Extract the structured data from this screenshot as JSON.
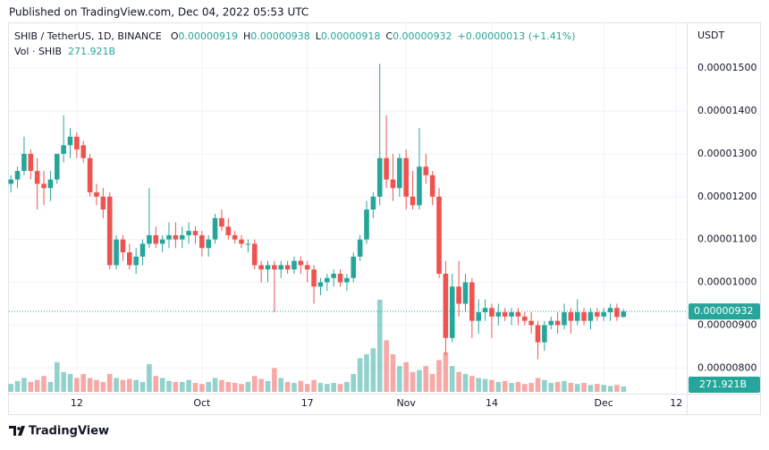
{
  "header": {
    "published": "Published on TradingView.com, Dec 04, 2022 05:53 UTC"
  },
  "footer": {
    "brand": "TradingView"
  },
  "chart_data": {
    "type": "candlestick",
    "title": "SHIB / TetherUS, 1D, BINANCE",
    "ohlc_legend": [
      {
        "label": "O",
        "value": "0.00000919"
      },
      {
        "label": "H",
        "value": "0.00000938"
      },
      {
        "label": "L",
        "value": "0.00000918"
      },
      {
        "label": "C",
        "value": "0.00000932"
      }
    ],
    "change": "+0.00000013 (+1.41%)",
    "volume_title": "Vol · SHIB",
    "volume_label": "271.921B",
    "currency": "USDT",
    "last_price_label": "0.00000932",
    "up_color": "#26a69a",
    "down_color": "#ef5350",
    "grid": true,
    "xlim": [
      -0.3,
      102.6
    ],
    "xticks": [
      {
        "value": 10,
        "label": "12"
      },
      {
        "value": 29,
        "label": "Oct"
      },
      {
        "value": 45,
        "label": "17"
      },
      {
        "value": 60,
        "label": "Nov"
      },
      {
        "value": 73,
        "label": "14"
      },
      {
        "value": 90,
        "label": "Dec"
      },
      {
        "value": 101,
        "label": "12"
      }
    ],
    "ylim": [
      7.4e-06,
      1.607e-05
    ],
    "yticks": [
      {
        "value": 1.5e-05,
        "label": "0.00001500"
      },
      {
        "value": 1.4e-05,
        "label": "0.00001400"
      },
      {
        "value": 1.3e-05,
        "label": "0.00001300"
      },
      {
        "value": 1.2e-05,
        "label": "0.00001200"
      },
      {
        "value": 1.1e-05,
        "label": "0.00001100"
      },
      {
        "value": 1e-05,
        "label": "0.00001000"
      },
      {
        "value": 9e-06,
        "label": "0.00000900"
      },
      {
        "value": 8e-06,
        "label": "0.00000800"
      }
    ],
    "open": [
      1.23e-05,
      1.24e-05,
      1.26e-05,
      1.3e-05,
      1.26e-05,
      1.23e-05,
      1.22e-05,
      1.24e-05,
      1.3e-05,
      1.32e-05,
      1.34e-05,
      1.32e-05,
      1.29e-05,
      1.21e-05,
      1.2e-05,
      1.2e-05,
      1.04e-05,
      1.1e-05,
      1.07e-05,
      1.04e-05,
      1.06e-05,
      1.09e-05,
      1.11e-05,
      1.09e-05,
      1.1e-05,
      1.11e-05,
      1.1e-05,
      1.11e-05,
      1.12e-05,
      1.11e-05,
      1.08e-05,
      1.1e-05,
      1.15e-05,
      1.13e-05,
      1.11e-05,
      1.1e-05,
      1.09e-05,
      1.09e-05,
      1.04e-05,
      1.03e-05,
      1.04e-05,
      1.03e-05,
      1.04e-05,
      1.03e-05,
      1.05e-05,
      1.04e-05,
      1.03e-05,
      9.9e-06,
      1e-05,
      1.01e-05,
      1.02e-05,
      1e-05,
      1.01e-05,
      1.06e-05,
      1.1e-05,
      1.17e-05,
      1.2e-05,
      1.29e-05,
      1.24e-05,
      1.22e-05,
      1.29e-05,
      1.2e-05,
      1.18e-05,
      1.27e-05,
      1.25e-05,
      1.2e-05,
      1.02e-05,
      8.7e-06,
      9.9e-06,
      9.5e-06,
      1e-05,
      9.1e-06,
      9.3e-06,
      9.4e-06,
      9.2e-06,
      9.3e-06,
      9.2e-06,
      9.3e-06,
      9.2e-06,
      9.1e-06,
      9e-06,
      8.6e-06,
      9e-06,
      9.1e-06,
      9e-06,
      9.3e-06,
      9.1e-06,
      9.3e-06,
      9.1e-06,
      9.3e-06,
      9.2e-06,
      9.3e-06,
      9.4e-06,
      9.19e-06
    ],
    "high": [
      1.25e-05,
      1.27e-05,
      1.34e-05,
      1.31e-05,
      1.29e-05,
      1.26e-05,
      1.26e-05,
      1.3e-05,
      1.39e-05,
      1.36e-05,
      1.35e-05,
      1.33e-05,
      1.3e-05,
      1.23e-05,
      1.22e-05,
      1.21e-05,
      1.11e-05,
      1.11e-05,
      1.09e-05,
      1.08e-05,
      1.1e-05,
      1.22e-05,
      1.13e-05,
      1.11e-05,
      1.14e-05,
      1.14e-05,
      1.13e-05,
      1.14e-05,
      1.13e-05,
      1.12e-05,
      1.11e-05,
      1.16e-05,
      1.17e-05,
      1.15e-05,
      1.12e-05,
      1.11e-05,
      1.1e-05,
      1.1e-05,
      1.05e-05,
      1.05e-05,
      1.05e-05,
      1.05e-05,
      1.05e-05,
      1.06e-05,
      1.06e-05,
      1.05e-05,
      1.04e-05,
      1.01e-05,
      1.02e-05,
      1.03e-05,
      1.03e-05,
      1.02e-05,
      1.07e-05,
      1.11e-05,
      1.19e-05,
      1.21e-05,
      1.51e-05,
      1.39e-05,
      1.3e-05,
      1.3e-05,
      1.31e-05,
      1.26e-05,
      1.36e-05,
      1.3e-05,
      1.26e-05,
      1.22e-05,
      1.05e-05,
      1.02e-05,
      1.05e-05,
      1.02e-05,
      1.01e-05,
      9.6e-06,
      9.6e-06,
      9.5e-06,
      9.5e-06,
      9.4e-06,
      9.4e-06,
      9.4e-06,
      9.3e-06,
      9.3e-06,
      9.1e-06,
      9.1e-06,
      9.2e-06,
      9.3e-06,
      9.5e-06,
      9.4e-06,
      9.6e-06,
      9.4e-06,
      9.4e-06,
      9.4e-06,
      9.4e-06,
      9.5e-06,
      9.5e-06,
      9.38e-06
    ],
    "low": [
      1.21e-05,
      1.22e-05,
      1.25e-05,
      1.24e-05,
      1.17e-05,
      1.18e-05,
      1.19e-05,
      1.23e-05,
      1.28e-05,
      1.29e-05,
      1.29e-05,
      1.28e-05,
      1.2e-05,
      1.18e-05,
      1.15e-05,
      1.03e-05,
      1.03e-05,
      1.05e-05,
      1.03e-05,
      1.02e-05,
      1.04e-05,
      1.08e-05,
      1.08e-05,
      1.07e-05,
      1.08e-05,
      1.08e-05,
      1.08e-05,
      1.09e-05,
      1.09e-05,
      1.06e-05,
      1.06e-05,
      1.09e-05,
      1.12e-05,
      1.1e-05,
      1.09e-05,
      1.08e-05,
      1.07e-05,
      1.03e-05,
      1e-05,
      1e-05,
      9.3e-06,
      1.01e-05,
      1.02e-05,
      1.02e-05,
      1.02e-05,
      1e-05,
      9.5e-06,
      9.7e-06,
      9.8e-06,
      9.9e-06,
      9.9e-06,
      9.8e-06,
      1e-05,
      1.05e-05,
      1.09e-05,
      1.15e-05,
      1.18e-05,
      1.22e-05,
      1.19e-05,
      1.2e-05,
      1.17e-05,
      1.17e-05,
      1.17e-05,
      1.23e-05,
      1.18e-05,
      1.01e-05,
      8.3e-06,
      8.6e-06,
      9.2e-06,
      9.3e-06,
      8.7e-06,
      8.8e-06,
      9.1e-06,
      8.7e-06,
      9e-06,
      9.1e-06,
      9e-06,
      9e-06,
      9e-06,
      8.8e-06,
      8.2e-06,
      8.4e-06,
      8.9e-06,
      8.8e-06,
      8.9e-06,
      8.8e-06,
      9e-06,
      9e-06,
      8.9e-06,
      9.1e-06,
      9.1e-06,
      9.1e-06,
      9.1e-06,
      9.18e-06
    ],
    "close": [
      1.24e-05,
      1.26e-05,
      1.3e-05,
      1.26e-05,
      1.23e-05,
      1.22e-05,
      1.24e-05,
      1.3e-05,
      1.32e-05,
      1.34e-05,
      1.31e-05,
      1.29e-05,
      1.21e-05,
      1.2e-05,
      1.17e-05,
      1.04e-05,
      1.1e-05,
      1.07e-05,
      1.04e-05,
      1.06e-05,
      1.09e-05,
      1.11e-05,
      1.09e-05,
      1.1e-05,
      1.11e-05,
      1.1e-05,
      1.11e-05,
      1.12e-05,
      1.11e-05,
      1.08e-05,
      1.1e-05,
      1.15e-05,
      1.13e-05,
      1.11e-05,
      1.1e-05,
      1.09e-05,
      1.09e-05,
      1.04e-05,
      1.03e-05,
      1.04e-05,
      1.03e-05,
      1.04e-05,
      1.03e-05,
      1.05e-05,
      1.04e-05,
      1.03e-05,
      9.9e-06,
      1e-05,
      1.01e-05,
      1.02e-05,
      1e-05,
      1.01e-05,
      1.06e-05,
      1.1e-05,
      1.17e-05,
      1.2e-05,
      1.29e-05,
      1.24e-05,
      1.22e-05,
      1.29e-05,
      1.2e-05,
      1.18e-05,
      1.27e-05,
      1.25e-05,
      1.2e-05,
      1.02e-05,
      8.7e-06,
      9.9e-06,
      9.5e-06,
      1e-05,
      9.1e-06,
      9.3e-06,
      9.4e-06,
      9.2e-06,
      9.3e-06,
      9.2e-06,
      9.3e-06,
      9.2e-06,
      9.1e-06,
      9e-06,
      8.6e-06,
      9e-06,
      9.1e-06,
      9e-06,
      9.3e-06,
      9.1e-06,
      9.3e-06,
      9.1e-06,
      9.3e-06,
      9.2e-06,
      9.3e-06,
      9.4e-06,
      9.19e-06,
      9.32e-06
    ],
    "volume": [
      400000000000.0,
      550000000000.0,
      700000000000.0,
      500000000000.0,
      600000000000.0,
      800000000000.0,
      500000000000.0,
      1500000000000.0,
      1000000000000.0,
      900000000000.0,
      700000000000.0,
      900000000000.0,
      700000000000.0,
      600000000000.0,
      500000000000.0,
      900000000000.0,
      700000000000.0,
      600000000000.0,
      650000000000.0,
      600000000000.0,
      500000000000.0,
      1400000000000.0,
      800000000000.0,
      700000000000.0,
      550000000000.0,
      500000000000.0,
      500000000000.0,
      600000000000.0,
      450000000000.0,
      400000000000.0,
      500000000000.0,
      700000000000.0,
      600000000000.0,
      500000000000.0,
      450000000000.0,
      400000000000.0,
      500000000000.0,
      800000000000.0,
      650000000000.0,
      550000000000.0,
      1200000000000.0,
      700000000000.0,
      500000000000.0,
      450000000000.0,
      550000000000.0,
      400000000000.0,
      600000000000.0,
      450000000000.0,
      400000000000.0,
      450000000000.0,
      400000000000.0,
      500000000000.0,
      900000000000.0,
      1700000000000.0,
      1900000000000.0,
      2200000000000.0,
      4650000000000.0,
      2600000000000.0,
      1900000000000.0,
      1300000000000.0,
      1500000000000.0,
      1000000000000.0,
      1100000000000.0,
      1300000000000.0,
      900000000000.0,
      1600000000000.0,
      2000000000000.0,
      1300000000000.0,
      1000000000000.0,
      900000000000.0,
      800000000000.0,
      700000000000.0,
      650000000000.0,
      600000000000.0,
      500000000000.0,
      550000000000.0,
      450000000000.0,
      500000000000.0,
      400000000000.0,
      450000000000.0,
      700000000000.0,
      600000000000.0,
      450000000000.0,
      500000000000.0,
      550000000000.0,
      450000000000.0,
      400000000000.0,
      450000000000.0,
      350000000000.0,
      400000000000.0,
      350000000000.0,
      300000000000.0,
      350000000000.0,
      271921000000.0
    ]
  }
}
